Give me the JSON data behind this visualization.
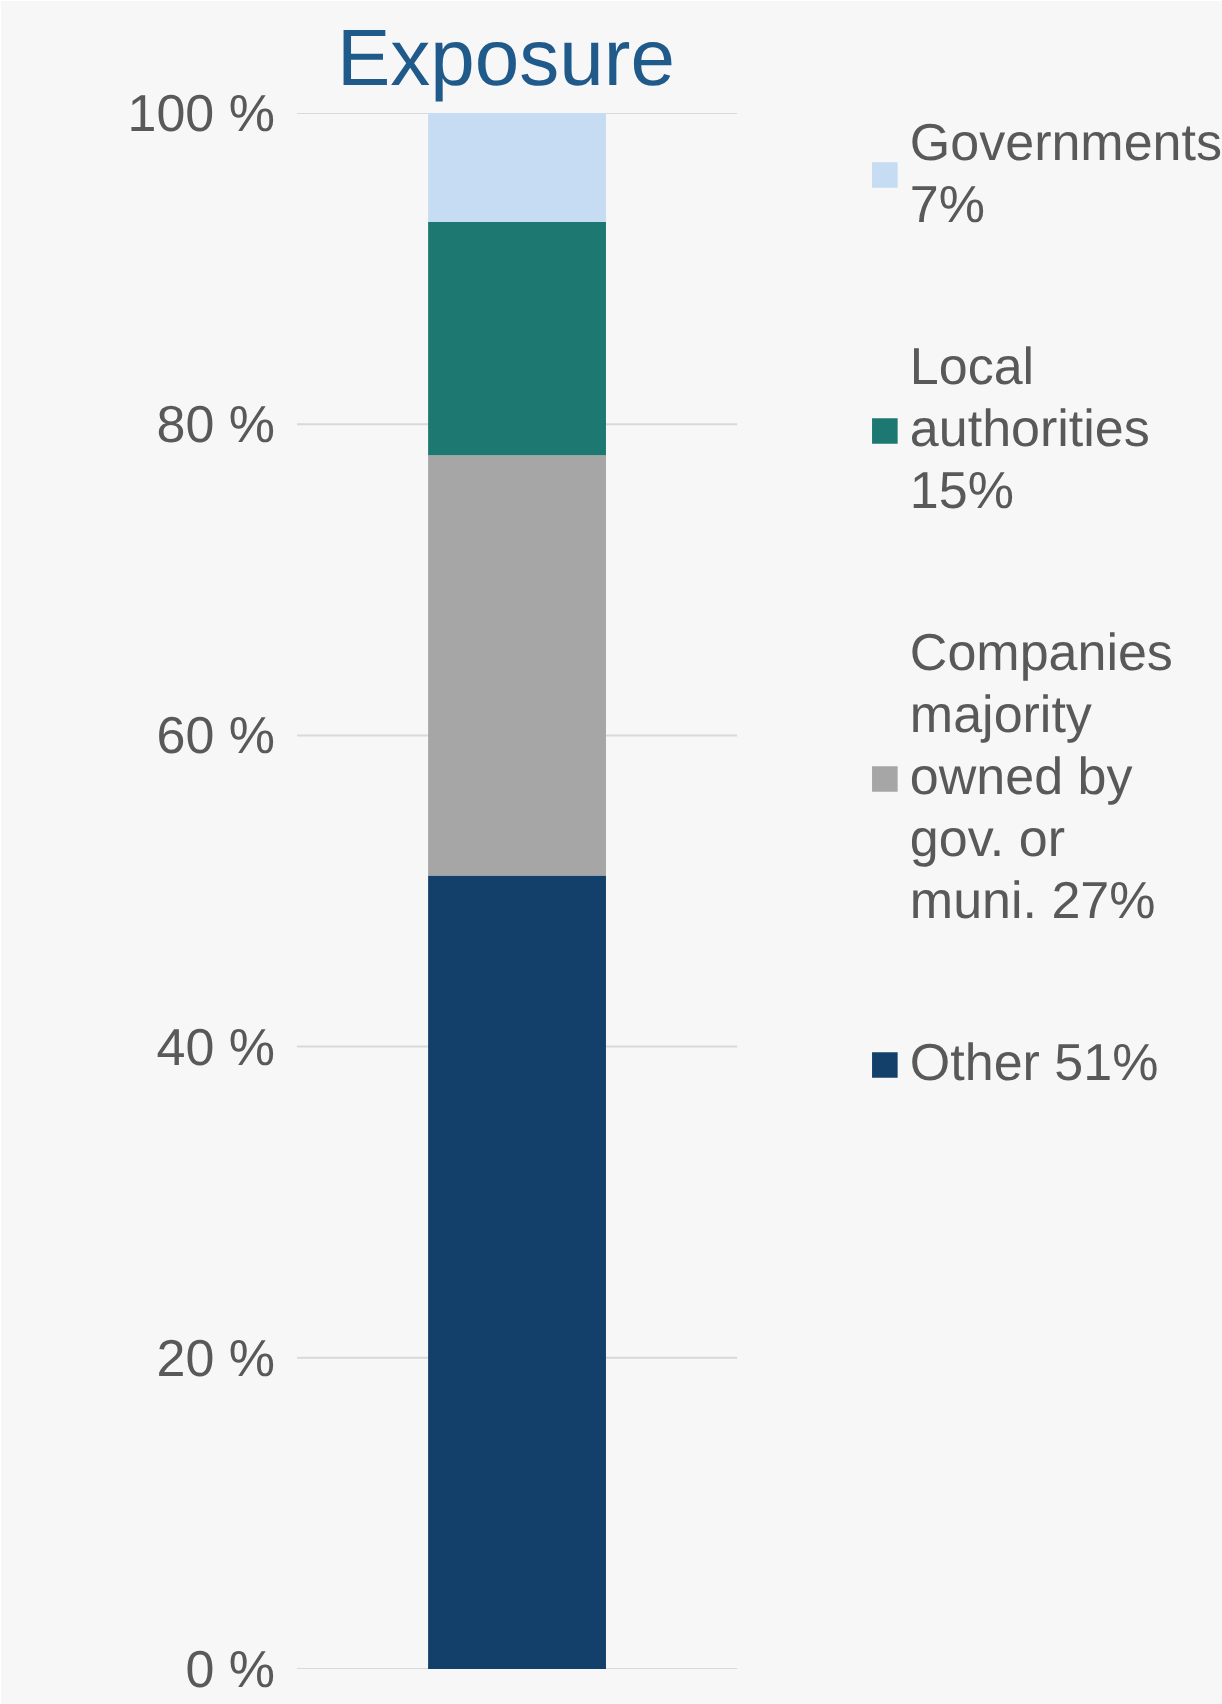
{
  "chart_data": {
    "type": "bar",
    "title": "Exposure",
    "stacked": true,
    "categories": [
      null
    ],
    "series": [
      {
        "name": "Other 51%",
        "color": "#12406a",
        "values": [
          51
        ]
      },
      {
        "name": "Companies majority owned by gov. or muni. 27%",
        "color": "#a6a6a6",
        "values": [
          27
        ]
      },
      {
        "name": "Local authorities 15%",
        "color": "#1d7872",
        "values": [
          15
        ]
      },
      {
        "name": "Governments 7%",
        "color": "#c5dcf2",
        "values": [
          7
        ]
      }
    ],
    "ylim": [
      0,
      100
    ],
    "yticks": [
      {
        "value": 0,
        "label": "0 %"
      },
      {
        "value": 20,
        "label": "20 %"
      },
      {
        "value": 40,
        "label": "40 %"
      },
      {
        "value": 60,
        "label": "60 %"
      },
      {
        "value": 80,
        "label": "80 %"
      },
      {
        "value": 100,
        "label": "100 %"
      }
    ],
    "grid": "y",
    "legend": "right"
  }
}
